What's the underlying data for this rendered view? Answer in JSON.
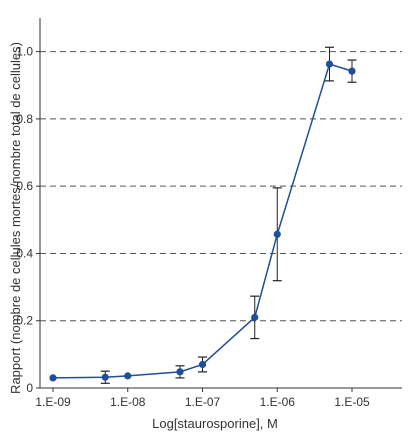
{
  "chart_data": {
    "type": "line",
    "title": "",
    "xlabel": "Log[staurosporine], M",
    "ylabel": "Rapport (nombre de cellules mortes/nombre total de cellules)",
    "x_scale": "log",
    "xlim": [
      1e-09,
      1e-05
    ],
    "ylim": [
      0,
      1.1
    ],
    "x_ticks": [
      1e-09,
      1e-08,
      1e-07,
      1e-06,
      1e-05
    ],
    "x_tick_labels": [
      "1.E-09",
      "1.E-08",
      "1.E-07",
      "1.E-06",
      "1.E-05"
    ],
    "y_ticks": [
      0,
      0.2,
      0.4,
      0.6,
      0.8,
      1.0
    ],
    "y_tick_labels": [
      "0",
      "0.2",
      "0.4",
      "0.6",
      "0.8",
      "1.0"
    ],
    "grid": "horizontal dashed",
    "series": [
      {
        "color": "#1f4e9a",
        "points": [
          {
            "x": 1e-09,
            "y": 0.03,
            "err": 0.0
          },
          {
            "x": 5e-09,
            "y": 0.032,
            "err": 0.018
          },
          {
            "x": 1e-08,
            "y": 0.036,
            "err": 0.0
          },
          {
            "x": 5e-08,
            "y": 0.048,
            "err": 0.018
          },
          {
            "x": 1e-07,
            "y": 0.07,
            "err": 0.022
          },
          {
            "x": 5e-07,
            "y": 0.21,
            "err": 0.063
          },
          {
            "x": 1e-06,
            "y": 0.457,
            "err": 0.138
          },
          {
            "x": 5e-06,
            "y": 0.963,
            "err": 0.05
          },
          {
            "x": 1e-05,
            "y": 0.942,
            "err": 0.033
          }
        ]
      }
    ]
  }
}
